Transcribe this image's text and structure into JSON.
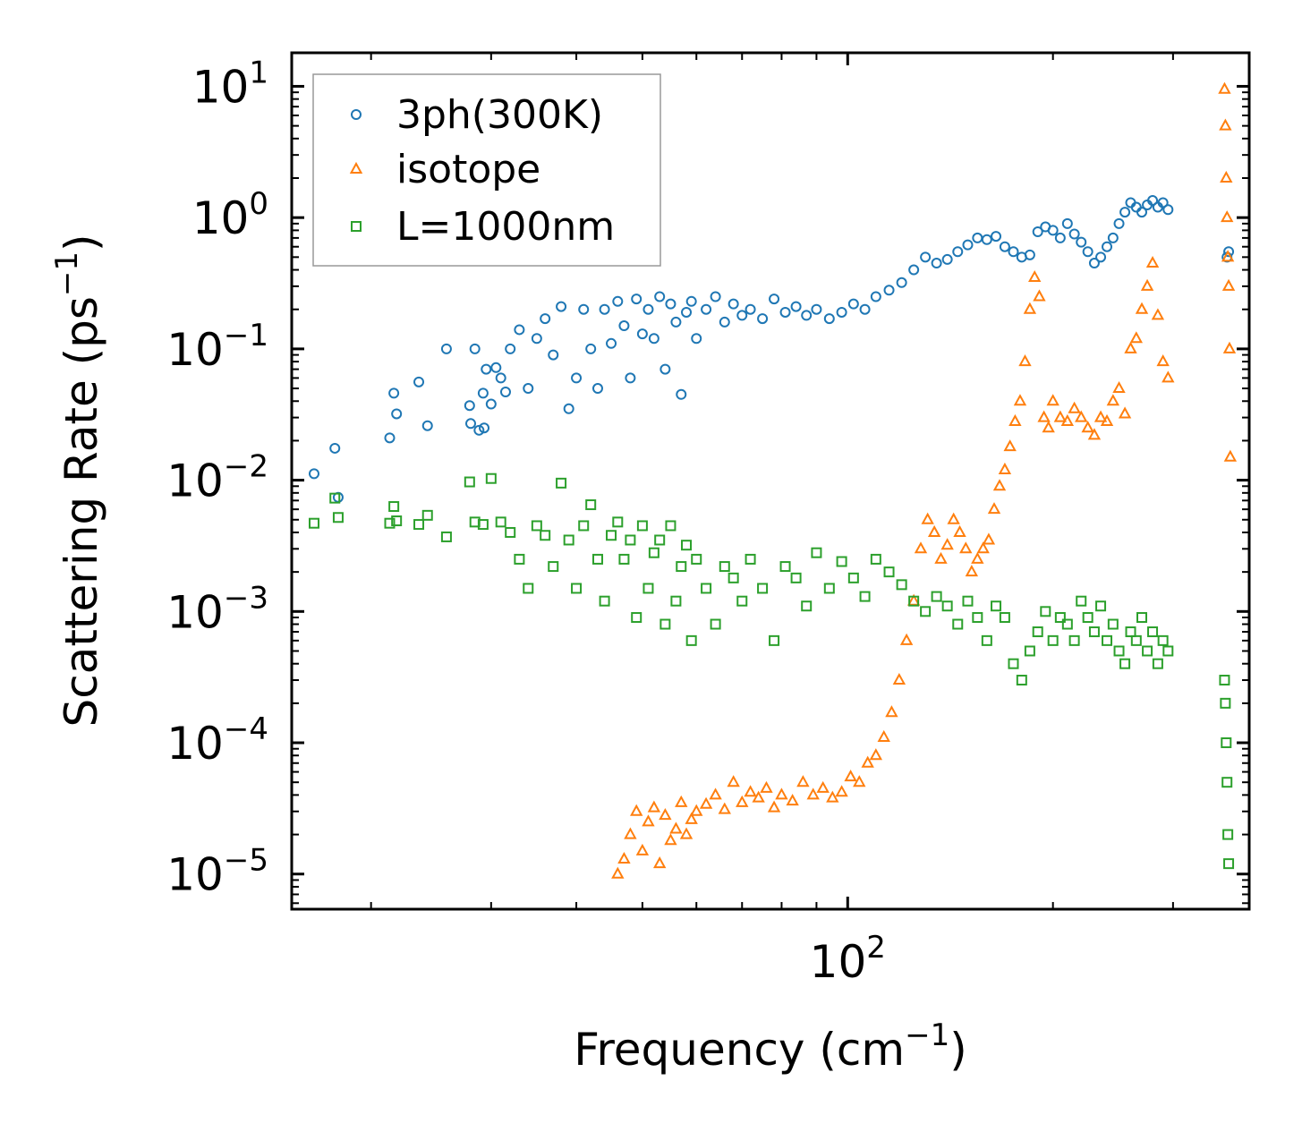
{
  "chart_data": {
    "type": "scatter",
    "xscale": "log",
    "yscale": "log",
    "xlim": [
      15.3,
      388
    ],
    "ylim": [
      5.4e-06,
      18
    ],
    "xlabel": "Frequency (cm",
    "xlabel_unit_exp": "−1",
    "xlabel_close": ")",
    "ylabel": "Scattering Rate (ps",
    "ylabel_unit_exp": "−1",
    "ylabel_close": ")",
    "x_major_ticks": [
      {
        "value": 100,
        "base": "10",
        "exp": "2"
      }
    ],
    "y_major_ticks": [
      {
        "value": 10,
        "base": "10",
        "exp": "1"
      },
      {
        "value": 1,
        "base": "10",
        "exp": "0"
      },
      {
        "value": 0.1,
        "base": "10",
        "exp": "−1"
      },
      {
        "value": 0.01,
        "base": "10",
        "exp": "−2"
      },
      {
        "value": 0.001,
        "base": "10",
        "exp": "−3"
      },
      {
        "value": 0.0001,
        "base": "10",
        "exp": "−4"
      },
      {
        "value": 1e-05,
        "base": "10",
        "exp": "−5"
      }
    ],
    "legend_position": "top-left",
    "series": [
      {
        "name": "3ph(300K)",
        "marker": "circle",
        "color": "#1f77b4",
        "x": [
          16.5,
          17.7,
          17.9,
          21.3,
          21.6,
          21.8,
          23.5,
          24.2,
          25.8,
          27.9,
          28,
          28.4,
          28.8,
          29.2,
          29.3,
          29.5,
          30,
          30.5,
          31,
          31.5,
          32,
          33,
          34,
          35,
          36,
          37,
          38,
          39,
          40,
          41,
          42,
          43,
          44,
          45,
          46,
          47,
          48,
          49,
          50,
          51,
          52,
          53,
          54,
          55,
          56,
          57,
          58,
          59,
          60,
          62,
          64,
          66,
          68,
          70,
          72,
          75,
          78,
          81,
          84,
          87,
          90,
          94,
          98,
          102,
          106,
          110,
          115,
          120,
          125,
          130,
          135,
          140,
          145,
          150,
          155,
          160,
          165,
          170,
          175,
          180,
          185,
          190,
          195,
          200,
          205,
          210,
          215,
          220,
          225,
          230,
          235,
          240,
          245,
          250,
          255,
          260,
          265,
          270,
          275,
          280,
          285,
          290,
          295,
          360,
          362
        ],
        "y": [
          0.0112,
          0.0175,
          0.0074,
          0.021,
          0.046,
          0.032,
          0.056,
          0.026,
          0.1,
          0.037,
          0.027,
          0.1,
          0.024,
          0.046,
          0.025,
          0.07,
          0.038,
          0.072,
          0.06,
          0.047,
          0.1,
          0.14,
          0.05,
          0.12,
          0.17,
          0.09,
          0.21,
          0.035,
          0.06,
          0.2,
          0.1,
          0.05,
          0.2,
          0.11,
          0.23,
          0.15,
          0.06,
          0.24,
          0.13,
          0.2,
          0.12,
          0.25,
          0.07,
          0.22,
          0.16,
          0.045,
          0.19,
          0.23,
          0.12,
          0.2,
          0.25,
          0.16,
          0.22,
          0.18,
          0.2,
          0.17,
          0.24,
          0.19,
          0.21,
          0.18,
          0.2,
          0.17,
          0.19,
          0.22,
          0.2,
          0.25,
          0.28,
          0.32,
          0.4,
          0.5,
          0.45,
          0.48,
          0.55,
          0.62,
          0.7,
          0.68,
          0.72,
          0.6,
          0.55,
          0.5,
          0.52,
          0.78,
          0.85,
          0.8,
          0.7,
          0.9,
          0.75,
          0.65,
          0.55,
          0.45,
          0.5,
          0.6,
          0.7,
          0.9,
          1.1,
          1.3,
          1.2,
          1.1,
          1.25,
          1.35,
          1.2,
          1.3,
          1.15,
          0.5,
          0.55
        ]
      },
      {
        "name": "isotope",
        "marker": "triangle",
        "color": "#ff7f0e",
        "x": [
          46,
          47,
          48,
          49,
          50,
          51,
          52,
          53,
          54,
          55,
          56,
          57,
          58,
          59,
          60,
          62,
          64,
          66,
          68,
          70,
          72,
          74,
          76,
          78,
          80,
          83,
          86,
          89,
          92,
          95,
          98,
          101,
          104,
          107,
          110,
          113,
          116,
          119,
          122,
          125,
          128,
          131,
          134,
          137,
          140,
          143,
          146,
          149,
          152,
          155,
          158,
          161,
          164,
          167,
          170,
          173,
          176,
          179,
          182,
          185,
          188,
          191,
          194,
          197,
          200,
          205,
          210,
          215,
          220,
          225,
          230,
          235,
          240,
          245,
          250,
          255,
          260,
          265,
          270,
          275,
          280,
          285,
          290,
          295,
          357,
          358,
          359,
          360,
          361,
          362,
          363,
          364
        ],
        "y": [
          1e-05,
          1.3e-05,
          2e-05,
          3e-05,
          1.5e-05,
          2.5e-05,
          3.2e-05,
          1.2e-05,
          2.8e-05,
          1.8e-05,
          2.2e-05,
          3.5e-05,
          2e-05,
          2.6e-05,
          3e-05,
          3.4e-05,
          4e-05,
          3.1e-05,
          5e-05,
          3.5e-05,
          4.2e-05,
          3.8e-05,
          4.5e-05,
          3.2e-05,
          4e-05,
          3.6e-05,
          5e-05,
          4e-05,
          4.5e-05,
          3.8e-05,
          4.2e-05,
          5.5e-05,
          5e-05,
          7e-05,
          8e-05,
          0.00011,
          0.00017,
          0.0003,
          0.0006,
          0.0012,
          0.003,
          0.005,
          0.004,
          0.0025,
          0.0032,
          0.005,
          0.004,
          0.003,
          0.002,
          0.0025,
          0.003,
          0.0035,
          0.006,
          0.009,
          0.012,
          0.018,
          0.028,
          0.04,
          0.08,
          0.2,
          0.35,
          0.25,
          0.03,
          0.025,
          0.04,
          0.03,
          0.028,
          0.035,
          0.03,
          0.025,
          0.022,
          0.03,
          0.028,
          0.04,
          0.05,
          0.032,
          0.1,
          0.12,
          0.2,
          0.3,
          0.45,
          0.18,
          0.08,
          0.06,
          9.5,
          5,
          2,
          1,
          0.5,
          0.3,
          0.1,
          0.015
        ]
      },
      {
        "name": "L=1000nm",
        "marker": "square",
        "color": "#2ca02c",
        "x": [
          16.5,
          17.7,
          17.9,
          21.3,
          21.6,
          21.8,
          23.5,
          24.2,
          25.8,
          27.9,
          28.4,
          29.2,
          30,
          31,
          32,
          33,
          34,
          35,
          36,
          37,
          38,
          39,
          40,
          41,
          42,
          43,
          44,
          45,
          46,
          47,
          48,
          49,
          50,
          51,
          52,
          53,
          54,
          55,
          56,
          57,
          58,
          59,
          60,
          62,
          64,
          66,
          68,
          70,
          72,
          75,
          78,
          81,
          84,
          87,
          90,
          94,
          98,
          102,
          106,
          110,
          115,
          120,
          125,
          130,
          135,
          140,
          145,
          150,
          155,
          160,
          165,
          170,
          175,
          180,
          185,
          190,
          195,
          200,
          205,
          210,
          215,
          220,
          225,
          230,
          235,
          240,
          245,
          250,
          255,
          260,
          265,
          270,
          275,
          280,
          285,
          290,
          295,
          357,
          358,
          359,
          360,
          361,
          362
        ],
        "y": [
          0.0047,
          0.0073,
          0.0052,
          0.0047,
          0.0063,
          0.0049,
          0.0046,
          0.0054,
          0.0037,
          0.0097,
          0.0048,
          0.0046,
          0.0103,
          0.0048,
          0.004,
          0.0025,
          0.0015,
          0.0045,
          0.0038,
          0.0022,
          0.0095,
          0.0035,
          0.0015,
          0.0045,
          0.0065,
          0.0025,
          0.0012,
          0.0038,
          0.0048,
          0.0025,
          0.0035,
          0.0009,
          0.0045,
          0.0015,
          0.0028,
          0.0035,
          0.0008,
          0.0045,
          0.0012,
          0.0022,
          0.0032,
          0.0006,
          0.0025,
          0.0015,
          0.0008,
          0.0022,
          0.0018,
          0.0012,
          0.0025,
          0.0015,
          0.0006,
          0.0022,
          0.0018,
          0.0011,
          0.0028,
          0.0015,
          0.0024,
          0.0018,
          0.0013,
          0.0025,
          0.002,
          0.0016,
          0.0012,
          0.001,
          0.0013,
          0.0011,
          0.0008,
          0.0012,
          0.0009,
          0.0006,
          0.0011,
          0.0009,
          0.0004,
          0.0003,
          0.0005,
          0.0007,
          0.001,
          0.0006,
          0.0009,
          0.0008,
          0.0006,
          0.0012,
          0.0009,
          0.0007,
          0.0011,
          0.0006,
          0.0008,
          0.0005,
          0.0004,
          0.0007,
          0.0006,
          0.0009,
          0.0005,
          0.0007,
          0.0004,
          0.0006,
          0.0005,
          0.0003,
          0.0002,
          0.0001,
          5e-05,
          2e-05,
          1.2e-05
        ]
      }
    ]
  }
}
